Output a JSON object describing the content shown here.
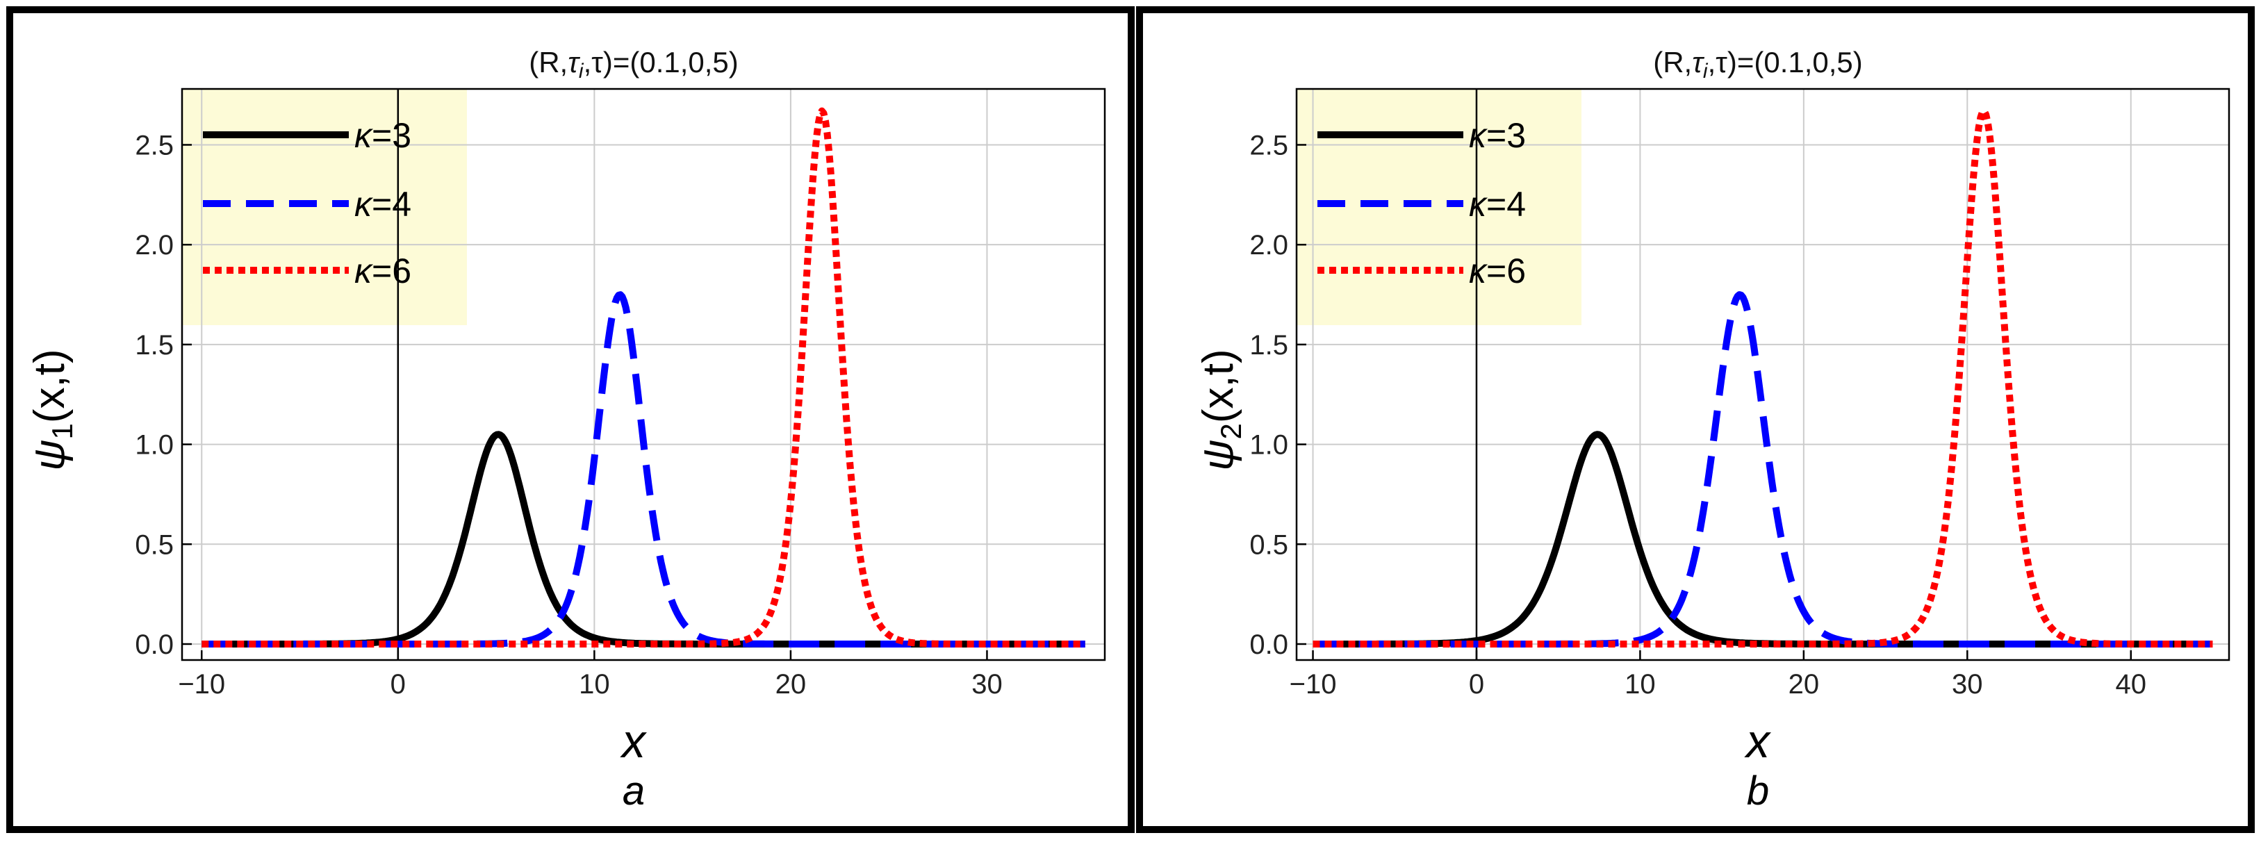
{
  "chart_data": [
    {
      "type": "line",
      "panel": "a",
      "title": "(R,τi,τ)=(0.1,0,5)",
      "title_parts": {
        "open": "(R,",
        "tau": "τ",
        "sub_i": "i",
        "rest": ",τ)=(0.1,0,5)"
      },
      "xlabel": "x",
      "ylabel": {
        "psi": "ψ",
        "sub": "1",
        "rest": "(x,t)"
      },
      "caption": "a",
      "xlim": [
        -11,
        36
      ],
      "ylim": [
        -0.08,
        2.78
      ],
      "xticks": [
        -10,
        0,
        10,
        20,
        30
      ],
      "xtick_labels": [
        "−10",
        "0",
        "10",
        "20",
        "30"
      ],
      "yticks": [
        0,
        0.5,
        1,
        1.5,
        2,
        2.5
      ],
      "ytick_labels": [
        "0.0",
        "0.5",
        "1.0",
        "1.5",
        "2.0",
        "2.5"
      ],
      "grid": true,
      "legend_position": "top-left",
      "series": [
        {
          "name": "κ=3",
          "kappa_symbol": "κ",
          "value_text": "=3",
          "color": "#000000",
          "style": "solid",
          "peak_x": 5.1,
          "peak_y": 1.05,
          "width": 2.0,
          "x_range": [
            -10,
            35
          ]
        },
        {
          "name": "κ=4",
          "kappa_symbol": "κ",
          "value_text": "=4",
          "color": "#0000ff",
          "style": "dashed",
          "peak_x": 11.3,
          "peak_y": 1.75,
          "width": 1.55,
          "x_range": [
            -10,
            35
          ]
        },
        {
          "name": "κ=6",
          "kappa_symbol": "κ",
          "value_text": "=6",
          "color": "#ff0000",
          "style": "dotted",
          "peak_x": 21.6,
          "peak_y": 2.67,
          "width": 1.25,
          "x_range": [
            -10,
            35
          ]
        }
      ]
    },
    {
      "type": "line",
      "panel": "b",
      "title": "(R,τi,τ)=(0.1,0,5)",
      "title_parts": {
        "open": "(R,",
        "tau": "τ",
        "sub_i": "i",
        "rest": ",τ)=(0.1,0,5)"
      },
      "xlabel": "x",
      "ylabel": {
        "psi": "ψ",
        "sub": "2",
        "rest": "(x,t)"
      },
      "caption": "b",
      "xlim": [
        -11,
        46
      ],
      "ylim": [
        -0.08,
        2.78
      ],
      "xticks": [
        -10,
        0,
        10,
        20,
        30,
        40
      ],
      "xtick_labels": [
        "−10",
        "0",
        "10",
        "20",
        "30",
        "40"
      ],
      "yticks": [
        0,
        0.5,
        1,
        1.5,
        2,
        2.5
      ],
      "ytick_labels": [
        "0.0",
        "0.5",
        "1.0",
        "1.5",
        "2.0",
        "2.5"
      ],
      "grid": true,
      "legend_position": "top-left",
      "series": [
        {
          "name": "κ=3",
          "kappa_symbol": "κ",
          "value_text": "=3",
          "color": "#000000",
          "style": "solid",
          "peak_x": 7.4,
          "peak_y": 1.05,
          "width": 2.7,
          "x_range": [
            -10,
            45
          ]
        },
        {
          "name": "κ=4",
          "kappa_symbol": "κ",
          "value_text": "=4",
          "color": "#0000ff",
          "style": "dashed",
          "peak_x": 16.1,
          "peak_y": 1.75,
          "width": 2.1,
          "x_range": [
            -10,
            45
          ]
        },
        {
          "name": "κ=6",
          "kappa_symbol": "κ",
          "value_text": "=6",
          "color": "#ff0000",
          "style": "dotted",
          "peak_x": 31.0,
          "peak_y": 2.67,
          "width": 1.7,
          "x_range": [
            -10,
            45
          ]
        }
      ]
    }
  ],
  "colors": {
    "legend_bg": "#fdfbd7",
    "grid": "#cccccc",
    "frame": "#000000"
  }
}
